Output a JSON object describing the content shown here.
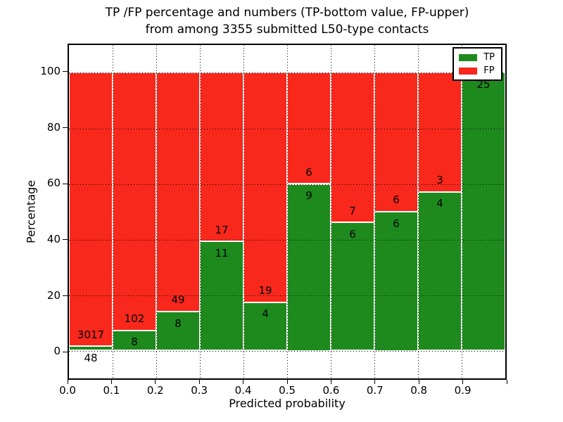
{
  "title": {
    "line1": "TP /FP percentage and numbers (TP-bottom value, FP-upper)",
    "line2": "from among 3355 submitted L50-type contacts"
  },
  "chart_data": {
    "type": "bar",
    "stacked": true,
    "title": "TP /FP percentage and numbers (TP-bottom value, FP-upper) from among 3355 submitted L50-type contacts",
    "xlabel": "Predicted probability",
    "ylabel": "Percentage",
    "total_contacts": 3355,
    "xlim": [
      0.0,
      1.0
    ],
    "ylim": [
      -10,
      110
    ],
    "x_tick_labels": [
      "0.0",
      "0.1",
      "0.2",
      "0.3",
      "0.4",
      "0.5",
      "0.6",
      "0.7",
      "0.8",
      "0.9"
    ],
    "y_ticks": [
      0,
      20,
      40,
      60,
      80,
      100
    ],
    "grid": true,
    "legend_position": "upper right",
    "categories": [
      "0.0-0.1",
      "0.1-0.2",
      "0.2-0.3",
      "0.3-0.4",
      "0.4-0.5",
      "0.5-0.6",
      "0.6-0.7",
      "0.7-0.8",
      "0.8-0.9",
      "0.9-1.0"
    ],
    "series": [
      {
        "name": "TP",
        "values": [
          48,
          8,
          8,
          11,
          4,
          9,
          6,
          6,
          4,
          25
        ]
      },
      {
        "name": "FP",
        "values": [
          3017,
          102,
          49,
          17,
          19,
          6,
          7,
          6,
          3,
          0
        ]
      }
    ],
    "bars": [
      {
        "tp": 48,
        "fp": 3017,
        "tp_pct": 1.57,
        "show_fp_label": true
      },
      {
        "tp": 8,
        "fp": 102,
        "tp_pct": 7.27,
        "show_fp_label": true
      },
      {
        "tp": 8,
        "fp": 49,
        "tp_pct": 14.04,
        "show_fp_label": true
      },
      {
        "tp": 11,
        "fp": 17,
        "tp_pct": 39.29,
        "show_fp_label": true
      },
      {
        "tp": 4,
        "fp": 19,
        "tp_pct": 17.39,
        "show_fp_label": true
      },
      {
        "tp": 9,
        "fp": 6,
        "tp_pct": 60.0,
        "show_fp_label": true
      },
      {
        "tp": 6,
        "fp": 7,
        "tp_pct": 46.15,
        "show_fp_label": true
      },
      {
        "tp": 6,
        "fp": 6,
        "tp_pct": 50.0,
        "show_fp_label": true
      },
      {
        "tp": 4,
        "fp": 3,
        "tp_pct": 57.14,
        "show_fp_label": true
      },
      {
        "tp": 25,
        "fp": 0,
        "tp_pct": 100.0,
        "show_fp_label": false
      }
    ],
    "legend": [
      {
        "label": "TP",
        "color": "#1e8a1e"
      },
      {
        "label": "FP",
        "color": "#f8281c"
      }
    ]
  },
  "colors": {
    "tp": "#1e8a1e",
    "fp": "#f8281c",
    "grid": "#000000",
    "background": "#ffffff"
  }
}
